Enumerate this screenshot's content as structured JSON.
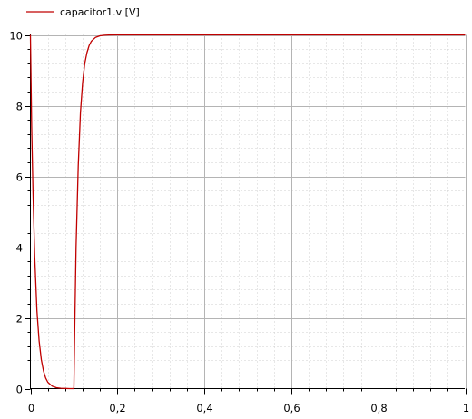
{
  "chart_data": {
    "type": "line",
    "title": "",
    "xlabel": "",
    "ylabel": "",
    "xlim": [
      0,
      1
    ],
    "ylim": [
      0,
      10
    ],
    "x_ticks": [
      "0",
      "0,2",
      "0,4",
      "0,6",
      "0,8",
      "1"
    ],
    "y_ticks": [
      "0",
      "2",
      "4",
      "6",
      "8",
      "10"
    ],
    "grid": true,
    "legend_position": "top-left",
    "colors": {
      "series": "#c00000",
      "major_grid": "#b4b4b4",
      "minor_grid": "#cfcfcf",
      "axis": "#000000"
    },
    "series": [
      {
        "name": "capacitor1.v [V]",
        "x": [
          0,
          0.003,
          0.006,
          0.01,
          0.015,
          0.02,
          0.025,
          0.03,
          0.035,
          0.04,
          0.05,
          0.06,
          0.07,
          0.08,
          0.09,
          0.1,
          0.1001,
          0.102,
          0.105,
          0.11,
          0.115,
          0.12,
          0.125,
          0.13,
          0.135,
          0.14,
          0.15,
          0.16,
          0.17,
          0.18,
          0.2,
          0.3,
          0.4,
          0.5,
          0.6,
          0.7,
          0.8,
          0.9,
          1.0
        ],
        "values": [
          10,
          7.4,
          5.5,
          3.7,
          2.2,
          1.35,
          0.82,
          0.5,
          0.3,
          0.18,
          0.07,
          0.025,
          0.01,
          0.004,
          0.001,
          0,
          0,
          1.8,
          4.0,
          6.3,
          7.8,
          8.65,
          9.2,
          9.5,
          9.7,
          9.82,
          9.93,
          9.975,
          9.99,
          9.997,
          10,
          10,
          10,
          10,
          10,
          10,
          10,
          10,
          10
        ]
      }
    ]
  }
}
